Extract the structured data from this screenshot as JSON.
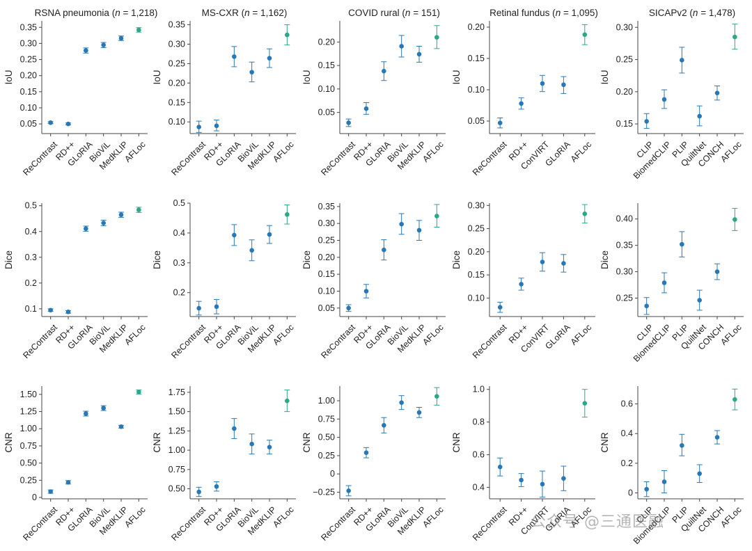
{
  "colors": {
    "baseline": "#2878b5",
    "proposed": "#2ba887",
    "axis": "#444444"
  },
  "watermark": "公众号 @三通医融",
  "chart_data": [
    {
      "type": "scatter",
      "title": "RSNA pneumonia (n = 1,218)",
      "title_name": "RSNA pneumonia",
      "title_n": "1,218",
      "ylabel": "IoU",
      "ylim": [
        0.02,
        0.37
      ],
      "yticks": [
        0.05,
        0.1,
        0.15,
        0.2,
        0.25,
        0.3,
        0.35
      ],
      "ytick_labels": [
        "0.05",
        "0.10",
        "0.15",
        "0.20",
        "0.25",
        "0.30",
        "0.35"
      ],
      "categories": [
        "ReContrast",
        "RD++",
        "GLoRIA",
        "BioViL",
        "MedKLIP",
        "AFLoc"
      ],
      "values": [
        0.054,
        0.05,
        0.278,
        0.295,
        0.316,
        0.342
      ],
      "lower": [
        0.051,
        0.047,
        0.27,
        0.287,
        0.309,
        0.335
      ],
      "upper": [
        0.057,
        0.053,
        0.286,
        0.303,
        0.323,
        0.349
      ]
    },
    {
      "type": "scatter",
      "title": "MS-CXR (n = 1,162)",
      "title_name": "MS-CXR",
      "title_n": "1,162",
      "ylabel": "IoU",
      "ylim": [
        0.07,
        0.36
      ],
      "yticks": [
        0.1,
        0.15,
        0.2,
        0.25,
        0.3,
        0.35
      ],
      "ytick_labels": [
        "0.10",
        "0.15",
        "0.20",
        "0.25",
        "0.30",
        "0.35"
      ],
      "categories": [
        "ReContrast",
        "RD++",
        "GLoRIA",
        "BioViL",
        "MedKLIP",
        "AFLoc"
      ],
      "values": [
        0.087,
        0.09,
        0.268,
        0.228,
        0.264,
        0.324
      ],
      "lower": [
        0.073,
        0.077,
        0.242,
        0.203,
        0.24,
        0.298
      ],
      "upper": [
        0.102,
        0.105,
        0.294,
        0.254,
        0.288,
        0.35
      ]
    },
    {
      "type": "scatter",
      "title": "COVID rural (n = 151)",
      "title_name": "COVID rural",
      "title_n": "151",
      "ylabel": "IoU",
      "ylim": [
        0.005,
        0.245
      ],
      "yticks": [
        0.05,
        0.1,
        0.15,
        0.2
      ],
      "ytick_labels": [
        "0.05",
        "0.10",
        "0.15",
        "0.20"
      ],
      "categories": [
        "ReContrast",
        "RD++",
        "GLoRIA",
        "BioViL",
        "MedKLIP",
        "AFLoc"
      ],
      "values": [
        0.028,
        0.058,
        0.138,
        0.191,
        0.174,
        0.21
      ],
      "lower": [
        0.02,
        0.046,
        0.118,
        0.168,
        0.157,
        0.186
      ],
      "upper": [
        0.036,
        0.071,
        0.158,
        0.214,
        0.191,
        0.235
      ]
    },
    {
      "type": "scatter",
      "title": "Retinal fundus (n = 1,095)",
      "title_name": "Retinal fundus",
      "title_n": "1,095",
      "ylabel": "IoU",
      "ylim": [
        0.03,
        0.21
      ],
      "yticks": [
        0.05,
        0.1,
        0.15,
        0.2
      ],
      "ytick_labels": [
        "0.05",
        "0.10",
        "0.15",
        "0.20"
      ],
      "categories": [
        "ReContrast",
        "RD++",
        "ConVIRT",
        "GLoRIA",
        "AFLoc"
      ],
      "values": [
        0.047,
        0.078,
        0.11,
        0.108,
        0.188
      ],
      "lower": [
        0.039,
        0.069,
        0.097,
        0.094,
        0.172
      ],
      "upper": [
        0.055,
        0.087,
        0.123,
        0.121,
        0.204
      ]
    },
    {
      "type": "scatter",
      "title": "SICAPv2 (n = 1,478)",
      "title_name": "SICAPv2",
      "title_n": "1,478",
      "ylabel": "IoU",
      "ylim": [
        0.135,
        0.31
      ],
      "yticks": [
        0.15,
        0.2,
        0.25,
        0.3
      ],
      "ytick_labels": [
        "0.15",
        "0.20",
        "0.25",
        "0.30"
      ],
      "categories": [
        "CLIP",
        "BiomedCLIP",
        "PLIP",
        "QuiltNet",
        "CONCH",
        "AFLoc"
      ],
      "values": [
        0.154,
        0.188,
        0.249,
        0.162,
        0.198,
        0.285
      ],
      "lower": [
        0.143,
        0.174,
        0.229,
        0.147,
        0.187,
        0.266
      ],
      "upper": [
        0.166,
        0.203,
        0.269,
        0.178,
        0.209,
        0.305
      ]
    },
    {
      "type": "scatter",
      "ylabel": "Dice",
      "ylim": [
        0.07,
        0.51
      ],
      "yticks": [
        0.1,
        0.2,
        0.3,
        0.4,
        0.5
      ],
      "ytick_labels": [
        "0.1",
        "0.2",
        "0.3",
        "0.4",
        "0.5"
      ],
      "categories": [
        "ReContrast",
        "RD++",
        "GLoRIA",
        "BioViL",
        "MedKLIP",
        "AFLoc"
      ],
      "values": [
        0.095,
        0.088,
        0.411,
        0.433,
        0.465,
        0.484
      ],
      "lower": [
        0.09,
        0.083,
        0.401,
        0.422,
        0.455,
        0.474
      ],
      "upper": [
        0.1,
        0.093,
        0.421,
        0.444,
        0.475,
        0.494
      ]
    },
    {
      "type": "scatter",
      "ylabel": "Dice",
      "ylim": [
        0.12,
        0.5
      ],
      "yticks": [
        0.2,
        0.3,
        0.4,
        0.5
      ],
      "ytick_labels": [
        "0.2",
        "0.3",
        "0.4",
        "0.5"
      ],
      "categories": [
        "ReContrast",
        "RD++",
        "GLoRIA",
        "BioViL",
        "MedKLIP",
        "AFLoc"
      ],
      "values": [
        0.148,
        0.153,
        0.393,
        0.342,
        0.395,
        0.462
      ],
      "lower": [
        0.125,
        0.129,
        0.358,
        0.307,
        0.365,
        0.43
      ],
      "upper": [
        0.171,
        0.177,
        0.428,
        0.377,
        0.425,
        0.494
      ]
    },
    {
      "type": "scatter",
      "ylabel": "Dice",
      "ylim": [
        0.025,
        0.36
      ],
      "yticks": [
        0.05,
        0.1,
        0.15,
        0.2,
        0.25,
        0.3,
        0.35
      ],
      "ytick_labels": [
        "0.05",
        "0.10",
        "0.15",
        "0.20",
        "0.25",
        "0.30",
        "0.35"
      ],
      "categories": [
        "ReContrast",
        "RD++",
        "GLoRIA",
        "BioViL",
        "MedKLIP",
        "AFLoc"
      ],
      "values": [
        0.05,
        0.1,
        0.222,
        0.298,
        0.28,
        0.322
      ],
      "lower": [
        0.04,
        0.08,
        0.192,
        0.268,
        0.25,
        0.289
      ],
      "upper": [
        0.06,
        0.12,
        0.252,
        0.329,
        0.309,
        0.356
      ]
    },
    {
      "type": "scatter",
      "ylabel": "Dice",
      "ylim": [
        0.06,
        0.305
      ],
      "yticks": [
        0.1,
        0.15,
        0.2,
        0.25,
        0.3
      ],
      "ytick_labels": [
        "0.10",
        "0.15",
        "0.20",
        "0.25",
        "0.30"
      ],
      "categories": [
        "ReContrast",
        "RD++",
        "ConVIRT",
        "GLoRIA",
        "AFLoc"
      ],
      "values": [
        0.08,
        0.13,
        0.178,
        0.175,
        0.282
      ],
      "lower": [
        0.069,
        0.117,
        0.158,
        0.156,
        0.262
      ],
      "upper": [
        0.091,
        0.143,
        0.198,
        0.194,
        0.302
      ]
    },
    {
      "type": "scatter",
      "ylabel": "Dice",
      "ylim": [
        0.215,
        0.43
      ],
      "yticks": [
        0.25,
        0.3,
        0.35,
        0.4
      ],
      "ytick_labels": [
        "0.25",
        "0.30",
        "0.35",
        "0.40"
      ],
      "categories": [
        "CLIP",
        "BiomedCLIP",
        "PLIP",
        "QuiltNet",
        "CONCH",
        "AFLoc"
      ],
      "values": [
        0.235,
        0.279,
        0.352,
        0.246,
        0.3,
        0.399
      ],
      "lower": [
        0.219,
        0.26,
        0.328,
        0.227,
        0.285,
        0.378
      ],
      "upper": [
        0.251,
        0.298,
        0.376,
        0.265,
        0.315,
        0.42
      ]
    },
    {
      "type": "scatter",
      "ylabel": "CNR",
      "ylim": [
        -0.02,
        1.62
      ],
      "yticks": [
        0,
        0.25,
        0.5,
        0.75,
        1.0,
        1.25,
        1.5
      ],
      "ytick_labels": [
        "0",
        "0.25",
        "0.50",
        "0.75",
        "1.00",
        "1.25",
        "1.50"
      ],
      "categories": [
        "ReContrast",
        "RD++",
        "GLoRIA",
        "BioViL",
        "MedKLIP",
        "AFLoc"
      ],
      "values": [
        0.085,
        0.22,
        1.22,
        1.3,
        1.03,
        1.535
      ],
      "lower": [
        0.06,
        0.195,
        1.185,
        1.265,
        1.01,
        1.505
      ],
      "upper": [
        0.11,
        0.245,
        1.255,
        1.335,
        1.05,
        1.565
      ]
    },
    {
      "type": "scatter",
      "ylabel": "CNR",
      "ylim": [
        0.37,
        1.83
      ],
      "yticks": [
        0.5,
        0.75,
        1.0,
        1.25,
        1.5,
        1.75
      ],
      "ytick_labels": [
        "0.50",
        "0.75",
        "1.00",
        "1.25",
        "1.50",
        "1.75"
      ],
      "categories": [
        "ReContrast",
        "RD++",
        "GLoRIA",
        "BioViL",
        "MedKLIP",
        "AFLoc"
      ],
      "values": [
        0.46,
        0.53,
        1.28,
        1.08,
        1.04,
        1.64
      ],
      "lower": [
        0.4,
        0.47,
        1.15,
        0.95,
        0.95,
        1.5
      ],
      "upper": [
        0.52,
        0.59,
        1.41,
        1.21,
        1.13,
        1.78
      ]
    },
    {
      "type": "scatter",
      "ylabel": "CNR",
      "ylim": [
        -0.34,
        1.2
      ],
      "yticks": [
        -0.25,
        0,
        0.25,
        0.5,
        0.75,
        1.0
      ],
      "ytick_labels": [
        "−0.25",
        "0",
        "0.25",
        "0.50",
        "0.75",
        "1.00"
      ],
      "categories": [
        "ReContrast",
        "RD++",
        "GLoRIA",
        "BioViL",
        "MedKLIP",
        "AFLoc"
      ],
      "values": [
        -0.23,
        0.29,
        0.665,
        0.975,
        0.84,
        1.06
      ],
      "lower": [
        -0.3,
        0.22,
        0.56,
        0.88,
        0.77,
        0.94
      ],
      "upper": [
        -0.16,
        0.36,
        0.77,
        1.07,
        0.91,
        1.18
      ]
    },
    {
      "type": "scatter",
      "ylabel": "CNR",
      "ylim": [
        0.33,
        1.02
      ],
      "yticks": [
        0.4,
        0.6,
        0.8,
        1.0
      ],
      "ytick_labels": [
        "0.4",
        "0.6",
        "0.8",
        "1.0"
      ],
      "categories": [
        "ReContrast",
        "RD++",
        "ConVIRT",
        "GLoRIA",
        "AFLoc"
      ],
      "values": [
        0.525,
        0.445,
        0.42,
        0.455,
        0.915
      ],
      "lower": [
        0.47,
        0.405,
        0.34,
        0.38,
        0.83
      ],
      "upper": [
        0.58,
        0.485,
        0.5,
        0.53,
        1.0
      ]
    },
    {
      "type": "scatter",
      "ylabel": "CNR",
      "ylim": [
        -0.04,
        0.72
      ],
      "yticks": [
        0,
        0.2,
        0.4,
        0.6
      ],
      "ytick_labels": [
        "0",
        "0.2",
        "0.4",
        "0.6"
      ],
      "categories": [
        "CLIP",
        "BiomedCLIP",
        "PLIP",
        "QuiltNet",
        "CONCH",
        "AFLoc"
      ],
      "values": [
        0.025,
        0.075,
        0.32,
        0.13,
        0.375,
        0.63
      ],
      "lower": [
        -0.025,
        0.0,
        0.25,
        0.07,
        0.33,
        0.56
      ],
      "upper": [
        0.075,
        0.15,
        0.395,
        0.19,
        0.42,
        0.7
      ]
    }
  ]
}
